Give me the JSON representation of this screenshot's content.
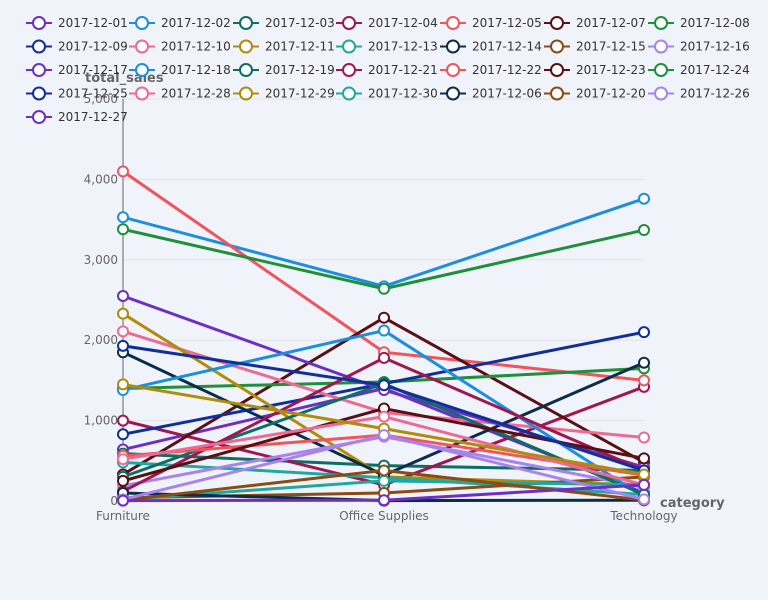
{
  "chart_data": {
    "type": "line",
    "xlabel": "category",
    "ylabel": "total_sales",
    "categories": [
      "Furniture",
      "Office Supplies",
      "Technology"
    ],
    "ylim": [
      0,
      5000
    ],
    "yticks": [
      0,
      1000,
      2000,
      3000,
      4000,
      5000
    ],
    "ytick_labels": [
      "0",
      "1,000",
      "2,000",
      "3,000",
      "4,000",
      "5,000"
    ],
    "grid": true,
    "legend_position": "top",
    "series": [
      {
        "name": "2017-12-01",
        "color": "#6b2fc7",
        "values": [
          640,
          1400,
          100
        ]
      },
      {
        "name": "2017-12-02",
        "color": "#1a8fe0",
        "values": [
          3530,
          2670,
          3760
        ]
      },
      {
        "name": "2017-12-03",
        "color": "#0f6e64",
        "values": [
          590,
          440,
          380
        ]
      },
      {
        "name": "2017-12-04",
        "color": "#a0174f",
        "values": [
          1000,
          200,
          1420
        ]
      },
      {
        "name": "2017-12-05",
        "color": "#f0555e",
        "values": [
          4100,
          1850,
          1500
        ]
      },
      {
        "name": "2017-12-07",
        "color": "#5a0f12",
        "values": [
          330,
          2280,
          480
        ]
      },
      {
        "name": "2017-12-08",
        "color": "#1f8f3c",
        "values": [
          1400,
          1480,
          1650
        ]
      },
      {
        "name": "2017-12-09",
        "color": "#102f9a",
        "values": [
          830,
          1460,
          2100
        ]
      },
      {
        "name": "2017-12-10",
        "color": "#ee6a93",
        "values": [
          2110,
          1100,
          790
        ]
      },
      {
        "name": "2017-12-11",
        "color": "#b08c0a",
        "values": [
          2330,
          300,
          200
        ]
      },
      {
        "name": "2017-12-13",
        "color": "#1ea8a0",
        "values": [
          480,
          290,
          80
        ]
      },
      {
        "name": "2017-12-14",
        "color": "#0b2d4a",
        "values": [
          1850,
          320,
          1720
        ]
      },
      {
        "name": "2017-12-15",
        "color": "#8a4b14",
        "values": [
          40,
          100,
          300
        ]
      },
      {
        "name": "2017-12-16",
        "color": "#a883f0",
        "values": [
          190,
          800,
          170
        ]
      },
      {
        "name": "2017-12-17",
        "color": "#6b2fc7",
        "values": [
          2550,
          1380,
          420
        ]
      },
      {
        "name": "2017-12-18",
        "color": "#1a8fe0",
        "values": [
          1380,
          2120,
          50
        ]
      },
      {
        "name": "2017-12-19",
        "color": "#0f6e64",
        "values": [
          300,
          1460,
          80
        ]
      },
      {
        "name": "2017-12-21",
        "color": "#a0174f",
        "values": [
          120,
          1780,
          380
        ]
      },
      {
        "name": "2017-12-22",
        "color": "#f0555e",
        "values": [
          560,
          820,
          320
        ]
      },
      {
        "name": "2017-12-23",
        "color": "#5a0f12",
        "values": [
          250,
          1150,
          530
        ]
      },
      {
        "name": "2017-12-24",
        "color": "#1f8f3c",
        "values": [
          3380,
          2640,
          3370
        ]
      },
      {
        "name": "2017-12-25",
        "color": "#102f9a",
        "values": [
          1930,
          1440,
          380
        ]
      },
      {
        "name": "2017-12-28",
        "color": "#ee6a93",
        "values": [
          520,
          1050,
          200
        ]
      },
      {
        "name": "2017-12-29",
        "color": "#b08c0a",
        "values": [
          1450,
          900,
          330
        ]
      },
      {
        "name": "2017-12-30",
        "color": "#1ea8a0",
        "values": [
          20,
          250,
          200
        ]
      },
      {
        "name": "2017-12-06",
        "color": "#0b2d4a",
        "values": [
          100,
          5,
          10
        ]
      },
      {
        "name": "2017-12-20",
        "color": "#8a4b14",
        "values": [
          10,
          380,
          10
        ]
      },
      {
        "name": "2017-12-26",
        "color": "#a883f0",
        "values": [
          20,
          820,
          20
        ]
      },
      {
        "name": "2017-12-27",
        "color": "#6b2fc7",
        "values": [
          5,
          10,
          200
        ]
      }
    ]
  }
}
